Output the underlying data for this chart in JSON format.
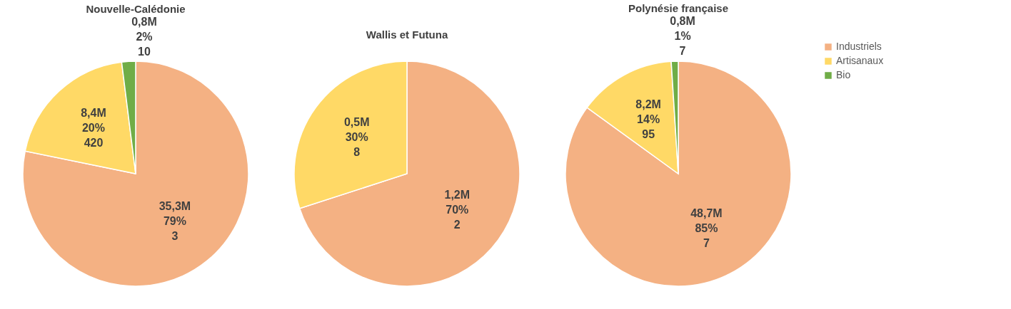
{
  "chart_data": [
    {
      "type": "pie",
      "title": "Nouvelle-Calédonie",
      "categories": [
        "Industriels",
        "Artisanaux",
        "Bio"
      ],
      "values": [
        79,
        20,
        2
      ],
      "colors": [
        "#f4b183",
        "#ffd966",
        "#70ad47"
      ],
      "value_labels": [
        "35,3M\n79%\n3",
        "8,4M\n20%\n420",
        "0,8M\n2%\n10"
      ],
      "legend": "right"
    },
    {
      "type": "pie",
      "title": "Wallis et Futuna",
      "categories": [
        null,
        null
      ],
      "values": [
        70,
        30
      ],
      "colors": [
        "#f4b183",
        "#ffd966"
      ],
      "value_labels": [
        "1,2M\n70%\n2",
        "0,5M\n30%\n8"
      ],
      "legend": false
    },
    {
      "type": "pie",
      "title": "Polynésie française",
      "categories": [
        null,
        null,
        null
      ],
      "values": [
        85,
        14,
        1
      ],
      "colors": [
        "#f4b183",
        "#ffd966",
        "#70ad47"
      ],
      "value_labels": [
        "48,7M\n85%\n7",
        "8,2M\n14%\n95",
        "0,8M\n1%\n7"
      ],
      "legend": false
    }
  ]
}
